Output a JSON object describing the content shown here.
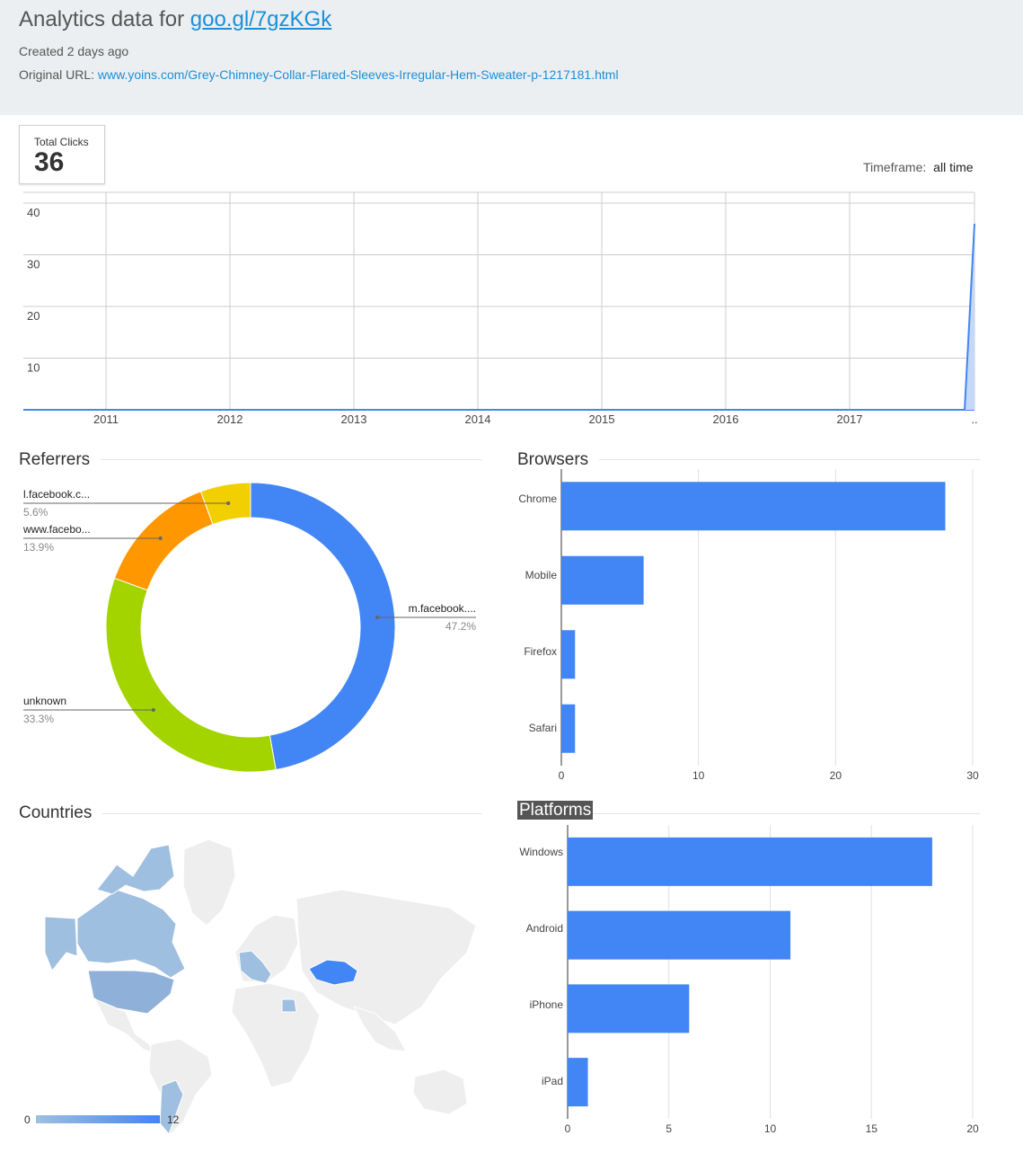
{
  "header": {
    "title_prefix": "Analytics data for",
    "short_url": "goo.gl/7gzKGk",
    "created": "Created 2 days ago",
    "original_url_label": "Original URL:",
    "original_url": "www.yoins.com/Grey-Chimney-Collar-Flared-Sleeves-Irregular-Hem-Sweater-p-1217181.html"
  },
  "total_clicks": {
    "label": "Total Clicks",
    "value": "36"
  },
  "timeframe": {
    "label": "Timeframe:",
    "value": "all time"
  },
  "sections": {
    "referrers": "Referrers",
    "browsers": "Browsers",
    "countries": "Countries",
    "platforms": "Platforms"
  },
  "colors": {
    "bar": "#4285f4",
    "ref_facebook_m": "#4285f4",
    "ref_unknown": "#a3d400",
    "ref_www": "#ff9800",
    "ref_l": "#f2cf00",
    "map_active": "#4285f4",
    "map_low": "#9fbfe0",
    "map_none": "#eeeeee"
  },
  "chart_data": [
    {
      "type": "area",
      "x_ticks": [
        "2011",
        "2012",
        "2013",
        "2014",
        "2015",
        "2016",
        "2017",
        ".."
      ],
      "y_ticks": [
        10,
        20,
        30,
        40
      ],
      "ylim": [
        0,
        40
      ],
      "series": [
        {
          "x": [
            "2010-06",
            "2017-11",
            "2017-12"
          ],
          "values": [
            0,
            0,
            36
          ]
        }
      ]
    },
    {
      "type": "pie",
      "labels": [
        "m.facebook....",
        "unknown",
        "www.facebo...",
        "l.facebook.c..."
      ],
      "pct_labels": [
        "47.2%",
        "33.3%",
        "13.9%",
        "5.6%"
      ],
      "values": [
        47.2,
        33.3,
        13.9,
        5.6
      ]
    },
    {
      "type": "bar",
      "categories": [
        "Chrome",
        "Mobile",
        "Firefox",
        "Safari"
      ],
      "values": [
        28,
        6,
        1,
        1
      ],
      "x_ticks": [
        0,
        10,
        20,
        30
      ],
      "xlim": [
        0,
        30
      ]
    },
    {
      "type": "bar",
      "categories": [
        "Windows",
        "Android",
        "iPhone",
        "iPad"
      ],
      "values": [
        18,
        11,
        6,
        1
      ],
      "x_ticks": [
        0,
        5,
        10,
        15,
        20
      ],
      "xlim": [
        0,
        20
      ]
    }
  ],
  "map": {
    "legend_min": "0",
    "legend_max": "12"
  }
}
